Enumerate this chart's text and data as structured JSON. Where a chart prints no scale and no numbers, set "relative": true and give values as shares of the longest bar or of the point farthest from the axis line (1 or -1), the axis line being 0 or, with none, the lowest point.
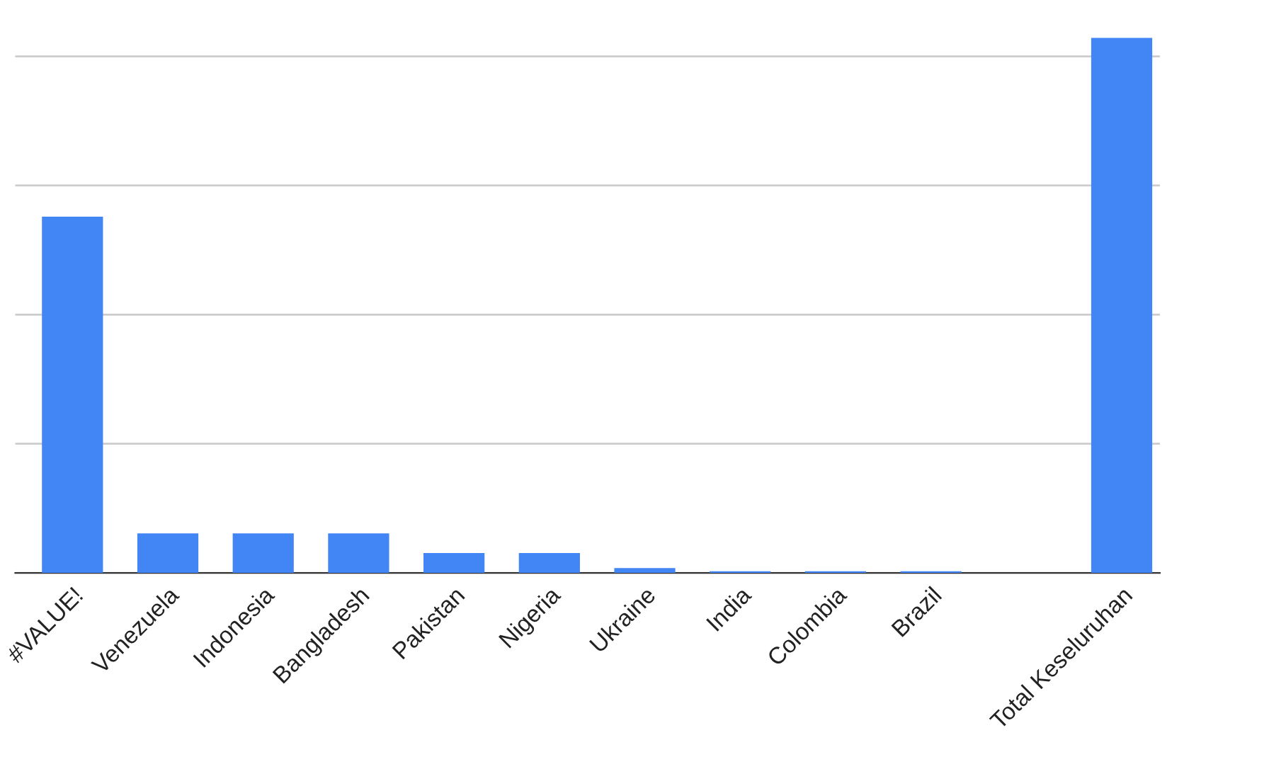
{
  "chart_data": {
    "type": "bar",
    "relative": true,
    "grid": "y",
    "color": "#4285f4",
    "categories": [
      "#VALUE!",
      "Venezuela",
      "Indonesia",
      "Bangladesh",
      "Pakistan",
      "Nigeria",
      "Ukraine",
      "India",
      "Colombia",
      "Brazil",
      null,
      "Total Keseluruhan"
    ],
    "values": [
      0.666,
      0.074,
      0.074,
      0.074,
      0.037,
      0.037,
      0.009,
      0.003,
      0.003,
      0.003,
      null,
      1
    ]
  }
}
